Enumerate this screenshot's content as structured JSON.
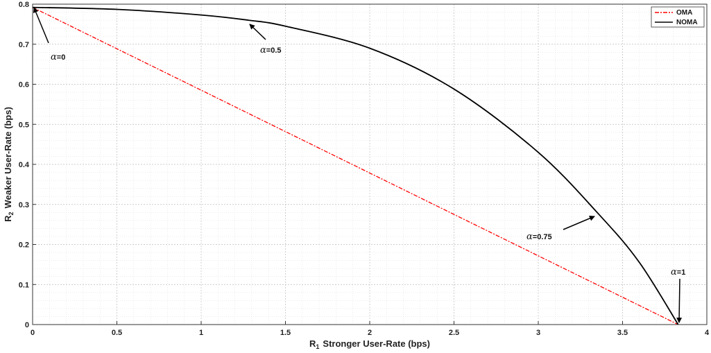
{
  "chart_data": {
    "type": "line",
    "xlabel_sub": "1",
    "xlabel": "Stronger User-Rate (bps)",
    "ylabel_sub": "2",
    "ylabel": "Weaker User-Rate (bps)",
    "xlabel_prefix": "R",
    "ylabel_prefix": "R",
    "xlim": [
      0,
      4
    ],
    "ylim": [
      0,
      0.8
    ],
    "xticks": [
      "0",
      "0.5",
      "1",
      "1.5",
      "2",
      "2.5",
      "3",
      "3.5",
      "4"
    ],
    "yticks": [
      "0",
      "0.1",
      "0.2",
      "0.3",
      "0.4",
      "0.5",
      "0.6",
      "0.7",
      "0.8"
    ],
    "grid": true,
    "minor_grid": true,
    "legend_position": "top-right",
    "series": [
      {
        "name": "OMA",
        "style": "dash-dot",
        "color": "#ff0000",
        "x": [
          0,
          3.83
        ],
        "y": [
          0.792,
          0
        ]
      },
      {
        "name": "NOMA",
        "style": "solid",
        "color": "#000000",
        "x": [
          0,
          0.5,
          1.0,
          1.28,
          1.5,
          2.0,
          2.5,
          3.0,
          3.36,
          3.6,
          3.83
        ],
        "y": [
          0.792,
          0.787,
          0.773,
          0.76,
          0.745,
          0.69,
          0.588,
          0.43,
          0.275,
          0.155,
          0
        ]
      }
    ],
    "annotations": [
      {
        "symbol": "α",
        "text": "=0"
      },
      {
        "symbol": "α",
        "text": "=0.5"
      },
      {
        "symbol": "α",
        "text": "=0.75"
      },
      {
        "symbol": "α",
        "text": "=1"
      }
    ]
  }
}
